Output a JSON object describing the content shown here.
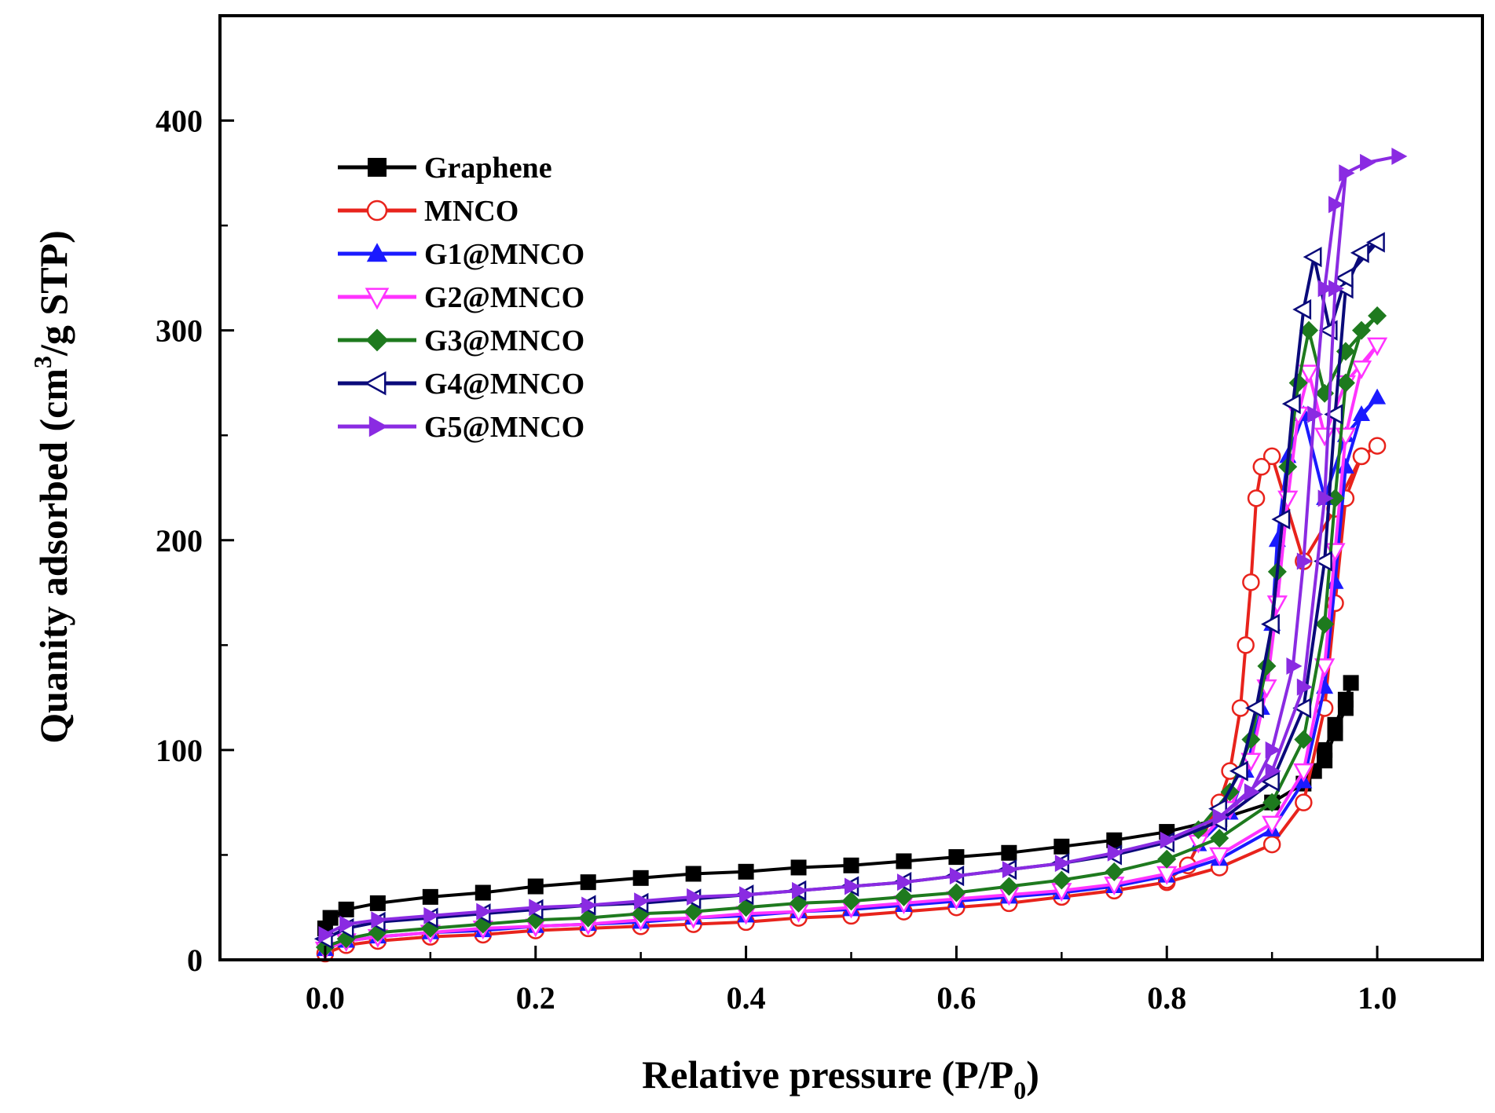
{
  "chart_data": {
    "type": "line",
    "xlabel": "Relative pressure (P/P",
    "xlabel_sub": "0",
    "xlabel_end": ")",
    "ylabel": "Quanity adsorbed (cm",
    "ylabel_sup": "3",
    "ylabel_end": "/g STP)",
    "xlim": [
      -0.1,
      1.1
    ],
    "ylim": [
      0,
      450
    ],
    "xticks": [
      0.0,
      0.2,
      0.4,
      0.6,
      0.8,
      1.0
    ],
    "xtick_labels": [
      "0.0",
      "0.2",
      "0.4",
      "0.6",
      "0.8",
      "1.0"
    ],
    "yticks": [
      0,
      100,
      200,
      300,
      400
    ],
    "ytick_labels": [
      "0",
      "100",
      "200",
      "300",
      "400"
    ],
    "legend_position": "top-left",
    "grid": false,
    "series": [
      {
        "name": "Graphene",
        "color": "#000000",
        "marker": "square-filled",
        "adsorption": [
          [
            0.0,
            15
          ],
          [
            0.005,
            20
          ],
          [
            0.02,
            24
          ],
          [
            0.05,
            27
          ],
          [
            0.1,
            30
          ],
          [
            0.15,
            32
          ],
          [
            0.2,
            35
          ],
          [
            0.25,
            37
          ],
          [
            0.3,
            39
          ],
          [
            0.35,
            41
          ],
          [
            0.4,
            42
          ],
          [
            0.45,
            44
          ],
          [
            0.5,
            45
          ],
          [
            0.55,
            47
          ],
          [
            0.6,
            49
          ],
          [
            0.65,
            51
          ],
          [
            0.7,
            54
          ],
          [
            0.75,
            57
          ],
          [
            0.8,
            61
          ],
          [
            0.85,
            67
          ],
          [
            0.9,
            75
          ],
          [
            0.93,
            84
          ],
          [
            0.95,
            95
          ],
          [
            0.96,
            108
          ],
          [
            0.97,
            120
          ],
          [
            0.975,
            132
          ]
        ],
        "desorption": [
          [
            0.975,
            132
          ],
          [
            0.97,
            124
          ],
          [
            0.96,
            112
          ],
          [
            0.95,
            100
          ],
          [
            0.94,
            90
          ]
        ]
      },
      {
        "name": "MNCO",
        "color": "#e8231c",
        "marker": "circle-open",
        "adsorption": [
          [
            0.0,
            3
          ],
          [
            0.02,
            7
          ],
          [
            0.05,
            9
          ],
          [
            0.1,
            11
          ],
          [
            0.15,
            12
          ],
          [
            0.2,
            14
          ],
          [
            0.25,
            15
          ],
          [
            0.3,
            16
          ],
          [
            0.35,
            17
          ],
          [
            0.4,
            18
          ],
          [
            0.45,
            20
          ],
          [
            0.5,
            21
          ],
          [
            0.55,
            23
          ],
          [
            0.6,
            25
          ],
          [
            0.65,
            27
          ],
          [
            0.7,
            30
          ],
          [
            0.75,
            33
          ],
          [
            0.8,
            37
          ],
          [
            0.85,
            44
          ],
          [
            0.9,
            55
          ],
          [
            0.93,
            75
          ],
          [
            0.95,
            120
          ],
          [
            0.96,
            170
          ],
          [
            0.97,
            220
          ],
          [
            0.985,
            240
          ],
          [
            1.0,
            245
          ]
        ],
        "desorption": [
          [
            1.0,
            245
          ],
          [
            0.985,
            240
          ],
          [
            0.96,
            215
          ],
          [
            0.93,
            190
          ],
          [
            0.9,
            240
          ],
          [
            0.89,
            235
          ],
          [
            0.885,
            220
          ],
          [
            0.88,
            180
          ],
          [
            0.875,
            150
          ],
          [
            0.87,
            120
          ],
          [
            0.86,
            90
          ],
          [
            0.85,
            75
          ],
          [
            0.82,
            45
          ],
          [
            0.8,
            38
          ]
        ]
      },
      {
        "name": "G1@MNCO",
        "color": "#1a1aff",
        "marker": "triangle-up-filled",
        "adsorption": [
          [
            0.0,
            5
          ],
          [
            0.02,
            9
          ],
          [
            0.05,
            11
          ],
          [
            0.1,
            13
          ],
          [
            0.15,
            14
          ],
          [
            0.2,
            16
          ],
          [
            0.25,
            17
          ],
          [
            0.3,
            18
          ],
          [
            0.35,
            20
          ],
          [
            0.4,
            21
          ],
          [
            0.45,
            23
          ],
          [
            0.5,
            24
          ],
          [
            0.55,
            26
          ],
          [
            0.6,
            28
          ],
          [
            0.65,
            30
          ],
          [
            0.7,
            32
          ],
          [
            0.75,
            35
          ],
          [
            0.8,
            40
          ],
          [
            0.85,
            48
          ],
          [
            0.9,
            62
          ],
          [
            0.93,
            85
          ],
          [
            0.95,
            130
          ],
          [
            0.96,
            180
          ],
          [
            0.97,
            235
          ],
          [
            0.985,
            260
          ],
          [
            1.0,
            268
          ]
        ],
        "desorption": [
          [
            1.0,
            268
          ],
          [
            0.97,
            250
          ],
          [
            0.95,
            220
          ],
          [
            0.93,
            260
          ],
          [
            0.915,
            240
          ],
          [
            0.905,
            200
          ],
          [
            0.9,
            160
          ],
          [
            0.89,
            120
          ],
          [
            0.875,
            90
          ],
          [
            0.86,
            70
          ],
          [
            0.83,
            55
          ]
        ]
      },
      {
        "name": "G2@MNCO",
        "color": "#ff33ff",
        "marker": "triangle-down-open",
        "adsorption": [
          [
            0.0,
            5
          ],
          [
            0.02,
            9
          ],
          [
            0.05,
            11
          ],
          [
            0.1,
            13
          ],
          [
            0.15,
            15
          ],
          [
            0.2,
            16
          ],
          [
            0.25,
            17
          ],
          [
            0.3,
            19
          ],
          [
            0.35,
            20
          ],
          [
            0.4,
            22
          ],
          [
            0.45,
            23
          ],
          [
            0.5,
            25
          ],
          [
            0.55,
            27
          ],
          [
            0.6,
            29
          ],
          [
            0.65,
            31
          ],
          [
            0.7,
            33
          ],
          [
            0.75,
            36
          ],
          [
            0.8,
            41
          ],
          [
            0.85,
            50
          ],
          [
            0.9,
            65
          ],
          [
            0.93,
            90
          ],
          [
            0.95,
            140
          ],
          [
            0.96,
            195
          ],
          [
            0.97,
            250
          ],
          [
            0.985,
            282
          ],
          [
            1.0,
            293
          ]
        ],
        "desorption": [
          [
            1.0,
            293
          ],
          [
            0.97,
            275
          ],
          [
            0.95,
            250
          ],
          [
            0.935,
            280
          ],
          [
            0.925,
            260
          ],
          [
            0.915,
            220
          ],
          [
            0.905,
            170
          ],
          [
            0.895,
            130
          ],
          [
            0.88,
            95
          ],
          [
            0.86,
            72
          ],
          [
            0.83,
            56
          ]
        ]
      },
      {
        "name": "G3@MNCO",
        "color": "#1e7a1e",
        "marker": "diamond-filled",
        "adsorption": [
          [
            0.0,
            6
          ],
          [
            0.02,
            10
          ],
          [
            0.05,
            13
          ],
          [
            0.1,
            15
          ],
          [
            0.15,
            17
          ],
          [
            0.2,
            19
          ],
          [
            0.25,
            20
          ],
          [
            0.3,
            22
          ],
          [
            0.35,
            23
          ],
          [
            0.4,
            25
          ],
          [
            0.45,
            27
          ],
          [
            0.5,
            28
          ],
          [
            0.55,
            30
          ],
          [
            0.6,
            32
          ],
          [
            0.65,
            35
          ],
          [
            0.7,
            38
          ],
          [
            0.75,
            42
          ],
          [
            0.8,
            48
          ],
          [
            0.85,
            58
          ],
          [
            0.9,
            75
          ],
          [
            0.93,
            105
          ],
          [
            0.95,
            160
          ],
          [
            0.96,
            220
          ],
          [
            0.97,
            275
          ],
          [
            0.985,
            300
          ],
          [
            1.0,
            307
          ]
        ],
        "desorption": [
          [
            1.0,
            307
          ],
          [
            0.97,
            290
          ],
          [
            0.95,
            270
          ],
          [
            0.935,
            300
          ],
          [
            0.925,
            275
          ],
          [
            0.915,
            235
          ],
          [
            0.905,
            185
          ],
          [
            0.895,
            140
          ],
          [
            0.88,
            105
          ],
          [
            0.86,
            80
          ],
          [
            0.83,
            62
          ]
        ]
      },
      {
        "name": "G4@MNCO",
        "color": "#0a0a7a",
        "marker": "triangle-left-open",
        "adsorption": [
          [
            0.0,
            10
          ],
          [
            0.02,
            15
          ],
          [
            0.05,
            18
          ],
          [
            0.1,
            20
          ],
          [
            0.15,
            22
          ],
          [
            0.2,
            24
          ],
          [
            0.25,
            26
          ],
          [
            0.3,
            27
          ],
          [
            0.35,
            29
          ],
          [
            0.4,
            31
          ],
          [
            0.45,
            33
          ],
          [
            0.5,
            35
          ],
          [
            0.55,
            37
          ],
          [
            0.6,
            40
          ],
          [
            0.65,
            43
          ],
          [
            0.7,
            46
          ],
          [
            0.75,
            50
          ],
          [
            0.8,
            56
          ],
          [
            0.85,
            66
          ],
          [
            0.9,
            85
          ],
          [
            0.93,
            120
          ],
          [
            0.95,
            190
          ],
          [
            0.96,
            260
          ],
          [
            0.97,
            320
          ],
          [
            0.985,
            337
          ],
          [
            1.0,
            342
          ]
        ],
        "desorption": [
          [
            1.0,
            342
          ],
          [
            0.97,
            325
          ],
          [
            0.955,
            300
          ],
          [
            0.94,
            335
          ],
          [
            0.93,
            310
          ],
          [
            0.92,
            265
          ],
          [
            0.91,
            210
          ],
          [
            0.9,
            160
          ],
          [
            0.885,
            120
          ],
          [
            0.87,
            90
          ],
          [
            0.85,
            72
          ]
        ]
      },
      {
        "name": "G5@MNCO",
        "color": "#8a2be2",
        "marker": "triangle-right-filled",
        "adsorption": [
          [
            0.0,
            12
          ],
          [
            0.02,
            17
          ],
          [
            0.05,
            19
          ],
          [
            0.1,
            21
          ],
          [
            0.15,
            23
          ],
          [
            0.2,
            25
          ],
          [
            0.25,
            26
          ],
          [
            0.3,
            28
          ],
          [
            0.35,
            30
          ],
          [
            0.4,
            31
          ],
          [
            0.45,
            33
          ],
          [
            0.5,
            35
          ],
          [
            0.55,
            37
          ],
          [
            0.6,
            40
          ],
          [
            0.65,
            43
          ],
          [
            0.7,
            46
          ],
          [
            0.75,
            51
          ],
          [
            0.8,
            57
          ],
          [
            0.85,
            68
          ],
          [
            0.9,
            90
          ],
          [
            0.93,
            130
          ],
          [
            0.95,
            220
          ],
          [
            0.96,
            320
          ],
          [
            0.97,
            375
          ],
          [
            0.99,
            380
          ],
          [
            1.02,
            383
          ]
        ],
        "desorption": [
          [
            1.02,
            383
          ],
          [
            0.99,
            380
          ],
          [
            0.97,
            375
          ],
          [
            0.96,
            360
          ],
          [
            0.95,
            320
          ],
          [
            0.94,
            260
          ],
          [
            0.93,
            190
          ],
          [
            0.92,
            140
          ],
          [
            0.9,
            100
          ],
          [
            0.88,
            80
          ],
          [
            0.85,
            68
          ]
        ]
      }
    ]
  }
}
